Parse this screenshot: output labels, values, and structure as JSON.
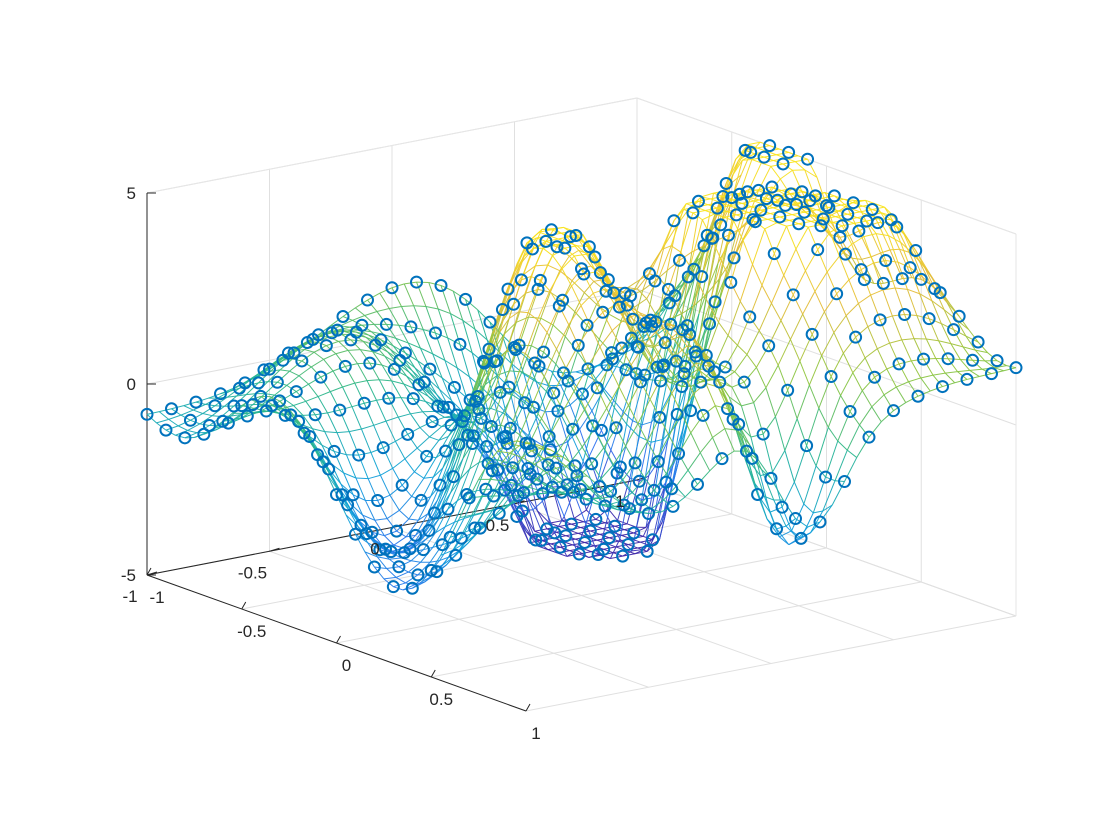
{
  "chart_data": {
    "type": "3d-mesh-scatter",
    "title": "",
    "xlabel": "",
    "ylabel": "",
    "zlabel": "",
    "xlim": [
      -1,
      1
    ],
    "ylim": [
      -1,
      1
    ],
    "zlim": [
      -5,
      5
    ],
    "x_ticks": [
      "-1",
      "-0.5",
      "0",
      "0.5",
      "1"
    ],
    "y_ticks": [
      "-1",
      "-0.5",
      "0",
      "0.5",
      "1"
    ],
    "z_ticks": [
      "-5",
      "0",
      "5"
    ],
    "grid": true,
    "grid_points": 41,
    "marker": "circle",
    "marker_color": "#0072bd",
    "mesh_colormap": [
      "#3e26a8",
      "#2e6ff0",
      "#10a2d8",
      "#2ab68f",
      "#90c63f",
      "#e5bd3a",
      "#f9e41f"
    ],
    "surface_peaks": [
      {
        "x": -0.2,
        "y": 0.9,
        "height": 6.5,
        "width": 0.22
      },
      {
        "x": 0.55,
        "y": 0.75,
        "height": 5.5,
        "width": 0.28
      },
      {
        "x": 0.2,
        "y": 0.45,
        "height": 6.5,
        "width": 0.2
      },
      {
        "x": 0.1,
        "y": -0.2,
        "height": 6.0,
        "width": 0.26
      },
      {
        "x": 0.8,
        "y": -0.1,
        "height": 3.5,
        "width": 0.22
      },
      {
        "x": -0.65,
        "y": 0.6,
        "height": -5.0,
        "width": 0.2
      },
      {
        "x": -0.35,
        "y": 0.45,
        "height": -6.5,
        "width": 0.22
      },
      {
        "x": -0.1,
        "y": -0.7,
        "height": -4.0,
        "width": 0.25
      },
      {
        "x": 0.85,
        "y": 0.15,
        "height": -5.0,
        "width": 0.14
      },
      {
        "x": 0.3,
        "y": 0.05,
        "height": -3.0,
        "width": 0.2
      }
    ],
    "surface_waves": [
      {
        "amplitude": 1.5,
        "fx": 4,
        "fy": 3
      },
      {
        "amplitude": 1.2,
        "fx": 6,
        "fy": 5
      }
    ]
  }
}
